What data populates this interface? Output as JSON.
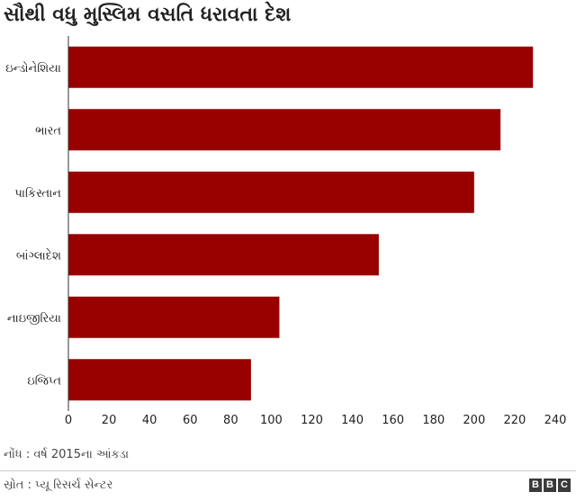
{
  "title": "સૌથી વધુ મુસ્લિમ વસતિ ધરાવતા દેશ",
  "note": "નોંધ : વર્ષ 2015ના આંકડા",
  "source": "સ્રોત : પ્યૂ રિસર્ચ સેન્ટર",
  "logo": [
    "B",
    "B",
    "C"
  ],
  "colors": {
    "bar": "#990000"
  },
  "chart_data": {
    "type": "bar",
    "orientation": "horizontal",
    "categories": [
      "ઇન્ડોનેશિયા",
      "ભારત",
      "પાકિસ્તાન",
      "બાંગ્લાદેશ",
      "નાઇજીરિયા",
      "ઇજિપ્ત"
    ],
    "values": [
      229,
      213,
      200,
      153,
      104,
      90
    ],
    "xlim": [
      0,
      240
    ],
    "xticks": [
      0,
      20,
      40,
      60,
      80,
      100,
      120,
      140,
      160,
      180,
      200,
      220,
      240
    ],
    "grid": false
  }
}
